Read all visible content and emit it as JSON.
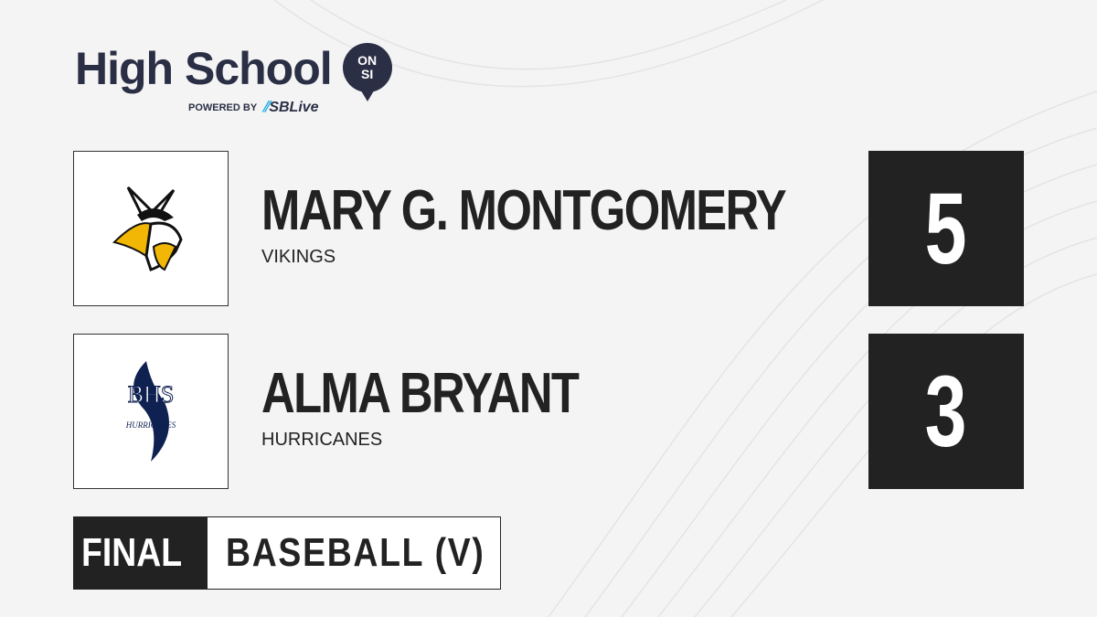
{
  "brand": {
    "title": "High School",
    "badge_top": "ON",
    "badge_bottom": "SI",
    "powered_by": "POWERED BY",
    "partner": "SBLive"
  },
  "teams": [
    {
      "name": "MARY G. MONTGOMERY",
      "mascot": "VIKINGS",
      "score": "5",
      "logo_text": ""
    },
    {
      "name": "ALMA BRYANT",
      "mascot": "HURRICANES",
      "score": "3",
      "logo_text": "BHS",
      "logo_sub": "HURRICANES"
    }
  ],
  "status": "FINAL",
  "sport": "BASEBALL (V)",
  "colors": {
    "navy": "#2b2f45",
    "dark": "#222222",
    "sblive": "#2ab0e8",
    "hurricane": "#0f2151",
    "viking_gold": "#f2b705"
  }
}
